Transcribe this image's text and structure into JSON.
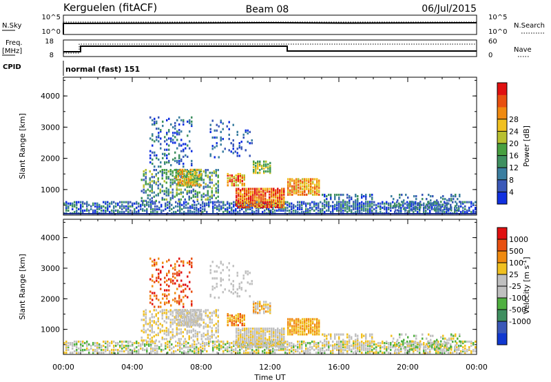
{
  "header": {
    "station": "Kerguelen (fitACF)",
    "beam": "Beam 08",
    "date": "06/Jul/2015"
  },
  "param_panels": {
    "nsky_label": "N.Sky",
    "nsky_ticks": [
      "10^5",
      "10^0"
    ],
    "nsearch_label": "N.Search",
    "nsearch_ticks": [
      "10^5",
      "10^0"
    ],
    "freq_label": "Freq.",
    "freq_unit": "[MHz]",
    "freq_ticks": [
      "18",
      "8"
    ],
    "nave_label": "Nave",
    "nave_ticks": [
      "60",
      "0"
    ],
    "cpid_label": "CPID",
    "cpid_value": "normal (fast) 151"
  },
  "chart_data": [
    {
      "type": "heatmap",
      "name": "power",
      "ylabel": "Slant Range [km]",
      "yticks": [
        1000,
        2000,
        3000,
        4000
      ],
      "ylim": [
        180,
        4600
      ],
      "xlim": [
        0,
        24
      ],
      "colorbar": {
        "label": "Power [dB]",
        "ticks": [
          "4",
          "8",
          "12",
          "16",
          "20",
          "24",
          "28"
        ],
        "colors": [
          "#1030e0",
          "#3a58b8",
          "#3b7ea0",
          "#3f9060",
          "#48a040",
          "#b8c030",
          "#f0c020",
          "#f08a10",
          "#e85010",
          "#e01010"
        ]
      }
    },
    {
      "type": "heatmap",
      "name": "velocity",
      "ylabel": "Slant Range [km]",
      "yticks": [
        1000,
        2000,
        3000,
        4000
      ],
      "ylim": [
        180,
        4600
      ],
      "xlim": [
        0,
        24
      ],
      "xticks": [
        "00:00",
        "04:00",
        "08:00",
        "12:00",
        "16:00",
        "20:00",
        "00:00"
      ],
      "xlabel": "Time UT",
      "colorbar": {
        "label": "Velocity [m s",
        "label_sup": "-1",
        "label_end": "]",
        "ticks": [
          "1000",
          "500",
          "100",
          "25",
          "-25",
          "-100",
          "-500",
          "-1000"
        ],
        "colors": [
          "#1038d0",
          "#3a58b8",
          "#3f8f60",
          "#50b040",
          "#c0c0c0",
          "#c0c0c0",
          "#f0c020",
          "#f08a10",
          "#e85010",
          "#e01010"
        ]
      }
    }
  ]
}
